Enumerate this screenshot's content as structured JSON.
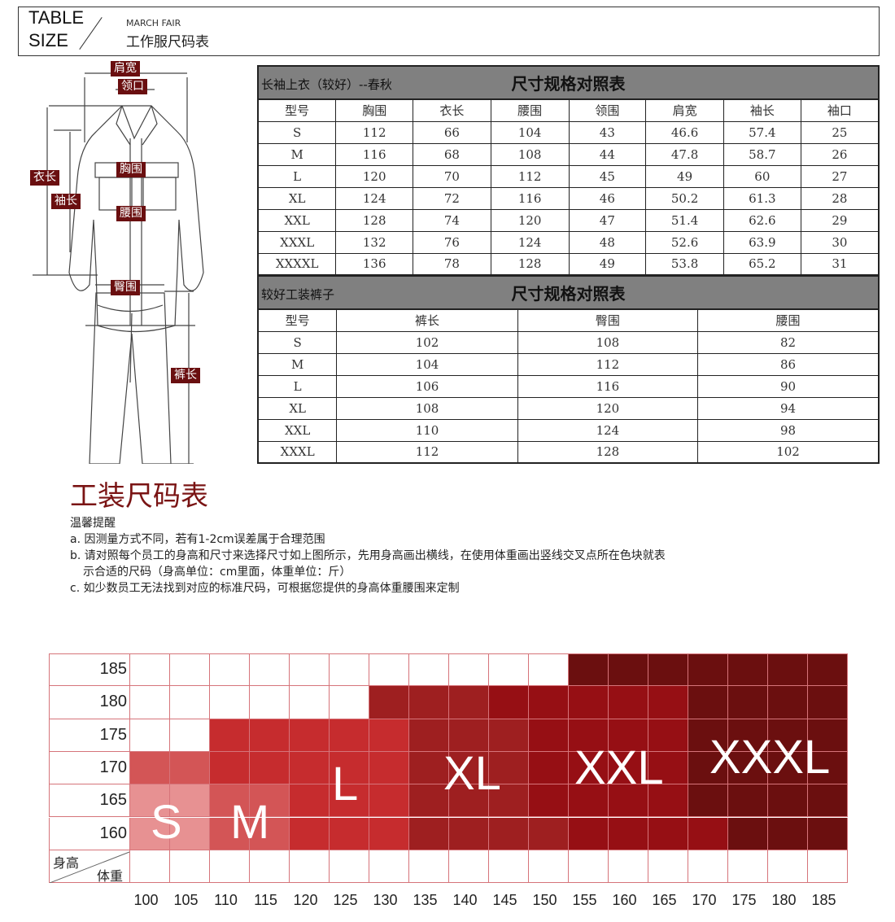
{
  "header": {
    "title_line1": "TABLE",
    "title_line2": "SIZE",
    "subtitle": "MARCH FAIR",
    "name": "工作服尺码表"
  },
  "diagram": {
    "labels": {
      "shoulder": "肩宽",
      "collar": "领口",
      "chest": "胸围",
      "length": "衣长",
      "sleeve": "袖长",
      "waist": "腰围",
      "hip": "臀围",
      "pants_length": "裤长"
    }
  },
  "jacket_table": {
    "left_title": "长袖上衣（较好）--春秋",
    "title": "尺寸规格对照表",
    "headers": [
      "型号",
      "胸围",
      "衣长",
      "腰围",
      "领围",
      "肩宽",
      "袖长",
      "袖口"
    ],
    "rows": [
      [
        "S",
        "112",
        "66",
        "104",
        "43",
        "46.6",
        "57.4",
        "25"
      ],
      [
        "M",
        "116",
        "68",
        "108",
        "44",
        "47.8",
        "58.7",
        "26"
      ],
      [
        "L",
        "120",
        "70",
        "112",
        "45",
        "49",
        "60",
        "27"
      ],
      [
        "XL",
        "124",
        "72",
        "116",
        "46",
        "50.2",
        "61.3",
        "28"
      ],
      [
        "XXL",
        "128",
        "74",
        "120",
        "47",
        "51.4",
        "62.6",
        "29"
      ],
      [
        "XXXL",
        "132",
        "76",
        "124",
        "48",
        "52.6",
        "63.9",
        "30"
      ],
      [
        "XXXXL",
        "136",
        "78",
        "128",
        "49",
        "53.8",
        "65.2",
        "31"
      ]
    ]
  },
  "pants_table": {
    "left_title": "较好工装裤子",
    "title": "尺寸规格对照表",
    "headers": [
      "型号",
      "裤长",
      "臀围",
      "腰围"
    ],
    "rows": [
      [
        "S",
        "102",
        "108",
        "82"
      ],
      [
        "M",
        "104",
        "112",
        "86"
      ],
      [
        "L",
        "106",
        "116",
        "90"
      ],
      [
        "XL",
        "108",
        "120",
        "94"
      ],
      [
        "XXL",
        "110",
        "124",
        "98"
      ],
      [
        "XXXL",
        "112",
        "128",
        "102"
      ]
    ]
  },
  "notes": {
    "title": "工装尺码表",
    "heading": "温馨提醒",
    "lines": [
      "a. 因测量方式不同，若有1-2cm误差属于合理范围",
      "b. 请对照每个员工的身高和尺寸来选择尺寸如上图所示，先用身高画出横线，在使用体重画出竖线交叉点所在色块就表",
      "示合适的尺码（身高单位：cm里面，体重单位：斤）",
      "c. 如少数员工无法找到对应的标准尺码，可根据您提供的身高体重腰围来定制"
    ]
  },
  "size_grid": {
    "row_axis_label": "身高",
    "col_axis_label": "体重",
    "heights": [
      "185",
      "180",
      "175",
      "170",
      "165",
      "160"
    ],
    "weights": [
      "100",
      "105",
      "110",
      "115",
      "120",
      "125",
      "130",
      "135",
      "140",
      "145",
      "150",
      "155",
      "160",
      "165",
      "170",
      "175",
      "180",
      "185"
    ],
    "colors": {
      "S": "#e79192",
      "M": "#d35556",
      "L": "#c62c2e",
      "XL": "#9e1f20",
      "XXL": "#960f14",
      "XXXL": "#6b0f0f"
    },
    "cells": [
      [
        "",
        "",
        "",
        "",
        "",
        "",
        "",
        "",
        "",
        "",
        "",
        "XXXL",
        "XXXL",
        "XXXL",
        "XXXL",
        "XXXL",
        "XXXL",
        "XXXL"
      ],
      [
        "",
        "",
        "",
        "",
        "",
        "",
        "XL",
        "XL",
        "XL",
        "XXL",
        "XXL",
        "XXL",
        "XXL",
        "XXL",
        "XXXL",
        "XXXL",
        "XXXL",
        "XXXL"
      ],
      [
        "",
        "",
        "L",
        "L",
        "L",
        "L",
        "L",
        "XL",
        "XL",
        "XL",
        "XXL",
        "XXL",
        "XXL",
        "XXL",
        "XXXL",
        "XXXL",
        "XXXL",
        "XXXL"
      ],
      [
        "M",
        "M",
        "L",
        "L",
        "L",
        "L",
        "L",
        "XL",
        "XL",
        "XL",
        "XXL",
        "XXL",
        "XXL",
        "XXL",
        "XXXL",
        "XXXL",
        "XXXL",
        "XXXL"
      ],
      [
        "S",
        "S",
        "M",
        "M",
        "L",
        "L",
        "L",
        "XL",
        "XL",
        "XL",
        "XXL",
        "XXL",
        "XXL",
        "XXL",
        "XXXL",
        "XXXL",
        "XXXL",
        "XXXL"
      ],
      [
        "S",
        "S",
        "M",
        "M",
        "L",
        "L",
        "L",
        "XL",
        "XL",
        "XL",
        "XL",
        "XXL",
        "XXL",
        "XXL",
        "XXL",
        "XXXL",
        "XXXL",
        "XXXL"
      ]
    ],
    "size_labels": [
      "S",
      "M",
      "L",
      "XL",
      "XXL",
      "XXXL"
    ]
  }
}
